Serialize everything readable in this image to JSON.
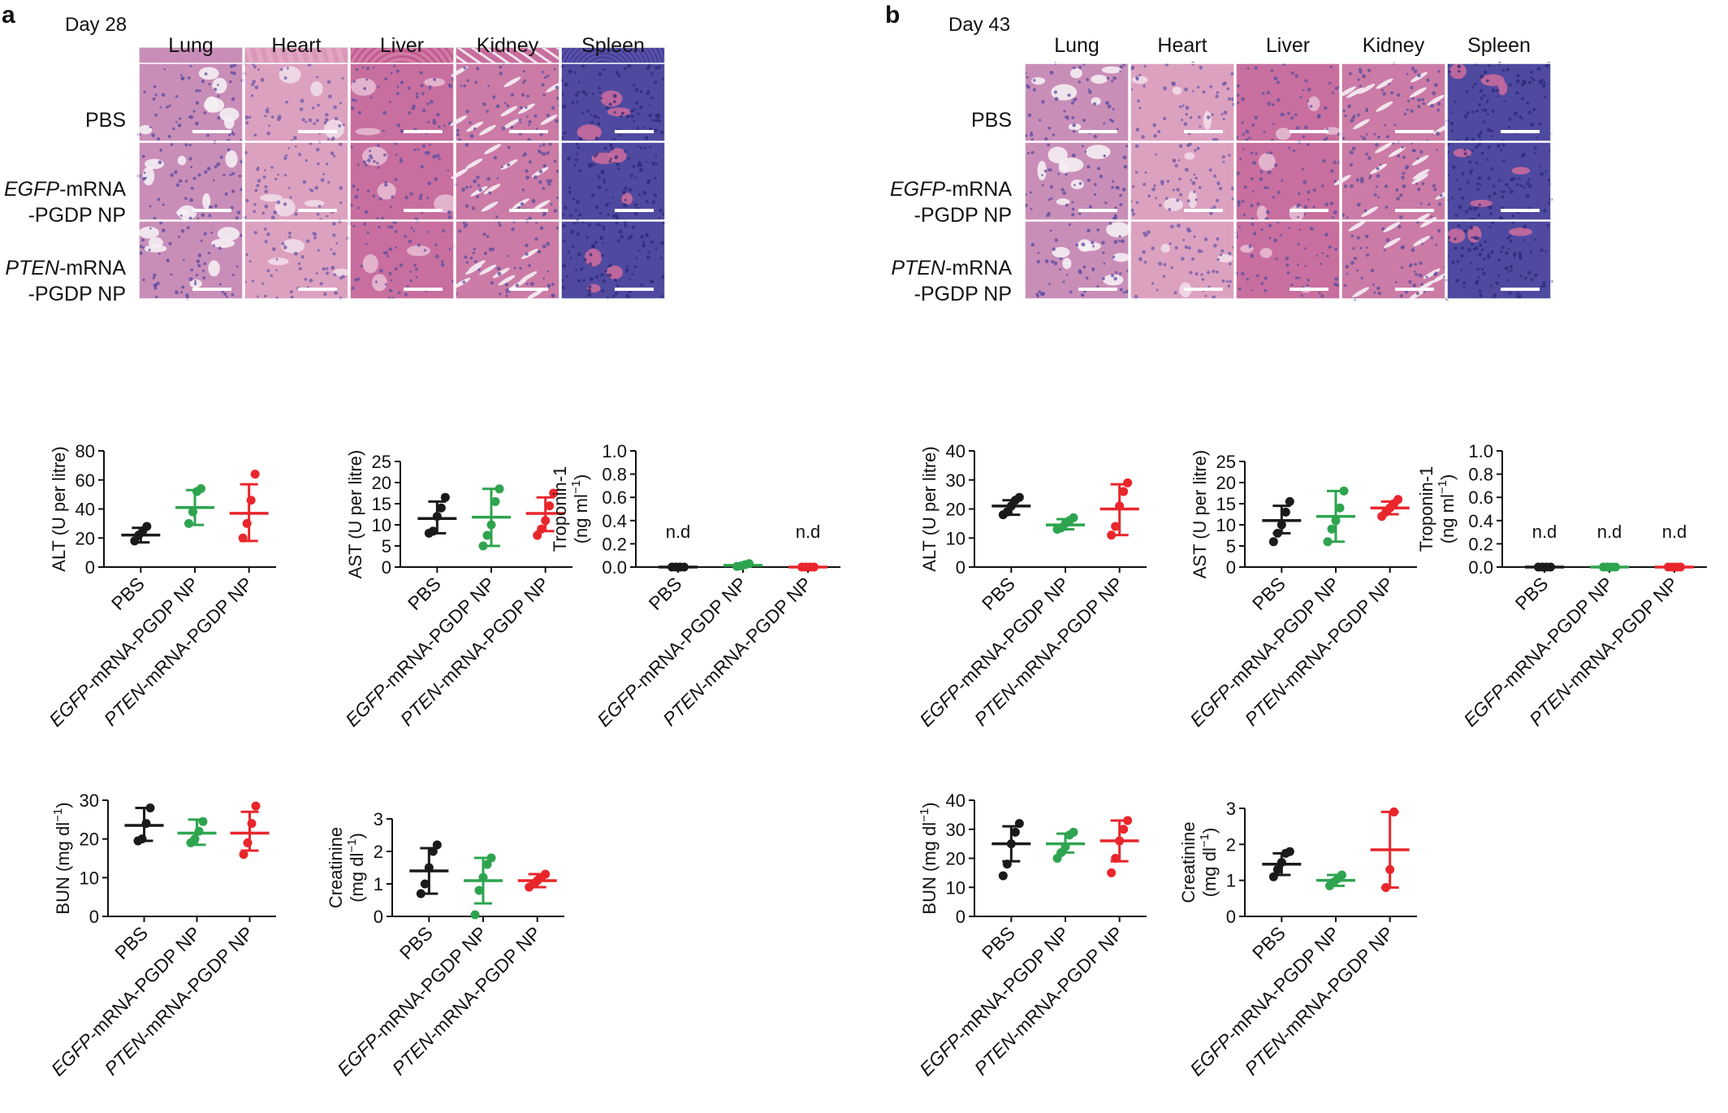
{
  "panels": [
    {
      "letter": "a",
      "day": "Day 28",
      "organs": [
        "Lung",
        "Heart",
        "Liver",
        "Kidney",
        "Spleen"
      ],
      "rows": [
        {
          "plain_before": "",
          "italic": "",
          "plain_after": "PBS",
          "line2": ""
        },
        {
          "plain_before": "",
          "italic": "EGFP",
          "plain_after": "-mRNA",
          "line2": "-PGDP NP"
        },
        {
          "plain_before": "",
          "italic": "PTEN",
          "plain_after": "-mRNA",
          "line2": "-PGDP NP"
        }
      ]
    },
    {
      "letter": "b",
      "day": "Day 43",
      "organs": [
        "Lung",
        "Heart",
        "Liver",
        "Kidney",
        "Spleen"
      ],
      "rows": [
        {
          "plain_before": "",
          "italic": "",
          "plain_after": "PBS",
          "line2": ""
        },
        {
          "plain_before": "",
          "italic": "EGFP",
          "plain_after": "-mRNA",
          "line2": "-PGDP NP"
        },
        {
          "plain_before": "",
          "italic": "PTEN",
          "plain_after": "-mRNA",
          "line2": "-PGDP NP"
        }
      ]
    }
  ],
  "groups": [
    {
      "italic": "",
      "rest": "PBS"
    },
    {
      "italic": "EGFP",
      "rest": "-mRNA-PGDP NP"
    },
    {
      "italic": "PTEN",
      "rest": "-mRNA-PGDP NP"
    }
  ],
  "colors": {
    "pbs": "#1a1a1a",
    "egfp": "#2ea44f",
    "pten": "#e8262b"
  },
  "chart_data": [
    {
      "id": "a-alt",
      "type": "scatter",
      "ylabel": "ALT (U per litre)",
      "ylim": [
        0,
        80
      ],
      "yticks": [
        0,
        20,
        40,
        60,
        80
      ],
      "means": [
        22,
        41,
        37
      ],
      "sd": [
        [
          17,
          27
        ],
        [
          29,
          53
        ],
        [
          18,
          57
        ]
      ],
      "points": [
        [
          18,
          22,
          25,
          28
        ],
        [
          30,
          38,
          52,
          54
        ],
        [
          20,
          30,
          46,
          64
        ]
      ],
      "nd": [
        "",
        "",
        ""
      ]
    },
    {
      "id": "a-ast",
      "type": "scatter",
      "ylabel": "AST (U per litre)",
      "ylim": [
        0,
        25
      ],
      "yticks": [
        0,
        5,
        10,
        15,
        20,
        25
      ],
      "means": [
        11.5,
        11.8,
        12.7
      ],
      "sd": [
        [
          8,
          15.5
        ],
        [
          5,
          18.5
        ],
        [
          8.5,
          16.5
        ]
      ],
      "points": [
        [
          8,
          8.5,
          12,
          14,
          16.5
        ],
        [
          5,
          7.5,
          10,
          15.5,
          18.5
        ],
        [
          7.5,
          9,
          11,
          14.5,
          17.5
        ]
      ],
      "nd": [
        "",
        "",
        ""
      ]
    },
    {
      "id": "a-trop",
      "type": "scatter",
      "ylabel": "Troponin-1",
      "ylabel2": "(ng ml−1)",
      "ylim": [
        0,
        1.0
      ],
      "yticks": [
        0,
        0.2,
        0.4,
        0.6,
        0.8,
        1.0
      ],
      "ytick_fmt": 1,
      "means": [
        0,
        0.015,
        0
      ],
      "sd": [
        [
          0,
          0
        ],
        [
          0.005,
          0.025
        ],
        [
          0,
          0
        ]
      ],
      "points": [
        [
          0,
          0,
          0,
          0
        ],
        [
          0.005,
          0.01,
          0.02,
          0.03
        ],
        [
          0,
          0,
          0,
          0
        ]
      ],
      "nd": [
        "n.d",
        "",
        "n.d"
      ]
    },
    {
      "id": "a-bun",
      "type": "scatter",
      "ylabel": "BUN (mg dl−1)",
      "ylim": [
        0,
        30
      ],
      "yticks": [
        0,
        10,
        20,
        30
      ],
      "means": [
        23.5,
        21.5,
        21.5
      ],
      "sd": [
        [
          19.5,
          28
        ],
        [
          18.5,
          25
        ],
        [
          17,
          27
        ]
      ],
      "points": [
        [
          19.5,
          20,
          24,
          28
        ],
        [
          19,
          20,
          22,
          24.5
        ],
        [
          16,
          19,
          24,
          28.5
        ]
      ],
      "nd": [
        "",
        "",
        ""
      ]
    },
    {
      "id": "a-creat",
      "type": "scatter",
      "ylabel": "Creatinine",
      "ylabel2": "(mg dl−1)",
      "ylim": [
        0,
        3
      ],
      "yticks": [
        0,
        1,
        2,
        3
      ],
      "means": [
        1.4,
        1.1,
        1.1
      ],
      "sd": [
        [
          0.7,
          2.1
        ],
        [
          0.4,
          1.8
        ],
        [
          0.9,
          1.3
        ]
      ],
      "points": [
        [
          0.7,
          1.0,
          1.5,
          2.0,
          2.2
        ],
        [
          0.05,
          0.8,
          1.2,
          1.6,
          1.8
        ],
        [
          0.9,
          1.0,
          1.1,
          1.2,
          1.3
        ]
      ],
      "nd": [
        "",
        "",
        ""
      ]
    },
    {
      "id": "b-alt",
      "type": "scatter",
      "ylabel": "ALT (U per litre)",
      "ylim": [
        0,
        40
      ],
      "yticks": [
        0,
        10,
        20,
        30,
        40
      ],
      "means": [
        21,
        14.5,
        20
      ],
      "sd": [
        [
          18,
          23
        ],
        [
          13,
          16.5
        ],
        [
          11,
          28.5
        ]
      ],
      "points": [
        [
          18,
          19,
          21,
          23,
          24
        ],
        [
          13,
          13.5,
          15,
          16,
          17
        ],
        [
          11,
          14,
          21,
          26,
          29
        ]
      ],
      "nd": [
        "",
        "",
        ""
      ]
    },
    {
      "id": "b-ast",
      "type": "scatter",
      "ylabel": "AST (U per litre)",
      "ylim": [
        0,
        25
      ],
      "yticks": [
        0,
        5,
        10,
        15,
        20,
        25
      ],
      "means": [
        11,
        12,
        14
      ],
      "sd": [
        [
          8,
          14.5
        ],
        [
          6,
          18
        ],
        [
          12.5,
          15.5
        ]
      ],
      "points": [
        [
          6,
          8,
          10,
          13,
          15.5
        ],
        [
          6,
          9,
          11,
          14,
          18
        ],
        [
          12,
          13,
          14,
          15,
          16
        ]
      ],
      "nd": [
        "",
        "",
        ""
      ]
    },
    {
      "id": "b-trop",
      "type": "scatter",
      "ylabel": "Troponin-1",
      "ylabel2": "(ng ml−1)",
      "ylim": [
        0,
        1.0
      ],
      "yticks": [
        0,
        0.2,
        0.4,
        0.6,
        0.8,
        1.0
      ],
      "ytick_fmt": 1,
      "means": [
        0,
        0,
        0
      ],
      "sd": [
        [
          0,
          0
        ],
        [
          0,
          0
        ],
        [
          0,
          0
        ]
      ],
      "points": [
        [
          0,
          0,
          0,
          0
        ],
        [
          0,
          0,
          0,
          0
        ],
        [
          0,
          0,
          0,
          0
        ]
      ],
      "nd": [
        "n.d",
        "n.d",
        "n.d"
      ]
    },
    {
      "id": "b-bun",
      "type": "scatter",
      "ylabel": "BUN (mg dl−1)",
      "ylim": [
        0,
        40
      ],
      "yticks": [
        0,
        10,
        20,
        30,
        40
      ],
      "means": [
        25,
        25,
        26
      ],
      "sd": [
        [
          19,
          31
        ],
        [
          22,
          28.5
        ],
        [
          19,
          33
        ]
      ],
      "points": [
        [
          14,
          18,
          25,
          29,
          32
        ],
        [
          20,
          22,
          24,
          28,
          29
        ],
        [
          15,
          20,
          26,
          30,
          33
        ]
      ],
      "nd": [
        "",
        "",
        ""
      ]
    },
    {
      "id": "b-creat",
      "type": "scatter",
      "ylabel": "Creatinine",
      "ylabel2": "(mg dl−1)",
      "ylim": [
        0,
        3
      ],
      "yticks": [
        0,
        1,
        2,
        3
      ],
      "means": [
        1.45,
        1.0,
        1.85
      ],
      "sd": [
        [
          1.15,
          1.75
        ],
        [
          0.85,
          1.15
        ],
        [
          0.8,
          2.9
        ]
      ],
      "points": [
        [
          1.1,
          1.3,
          1.5,
          1.75,
          1.8
        ],
        [
          0.85,
          0.95,
          1.05,
          1.15
        ],
        [
          0.8,
          1.3,
          2.9
        ]
      ],
      "nd": [
        "",
        "",
        ""
      ]
    }
  ]
}
